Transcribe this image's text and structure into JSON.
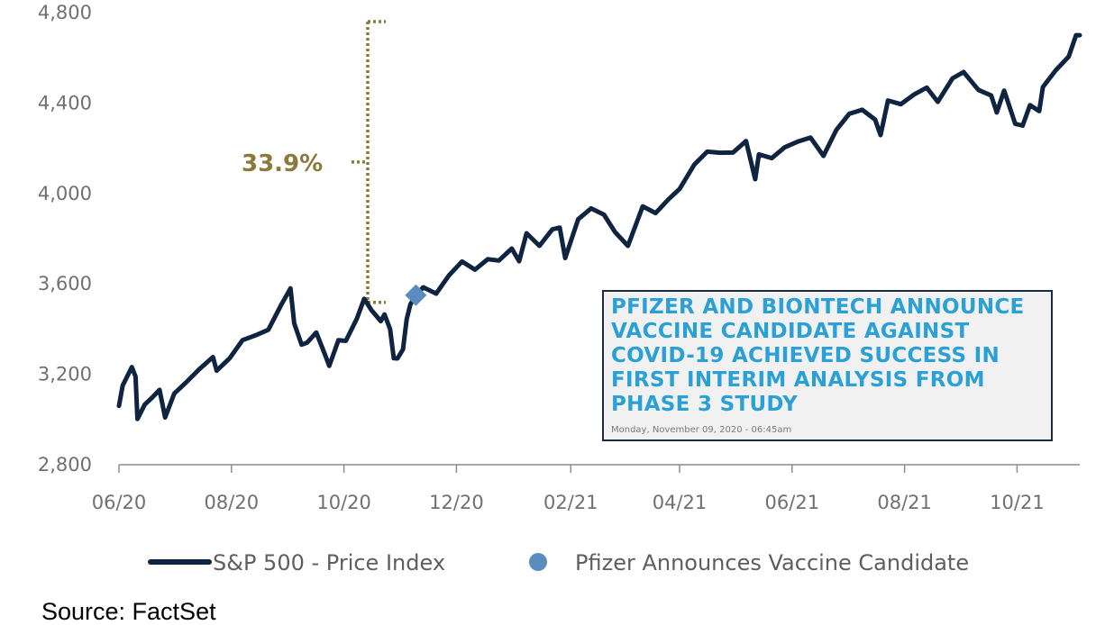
{
  "chart_data": {
    "type": "line",
    "x_axis": {
      "ticks": [
        "06/20",
        "08/20",
        "10/20",
        "12/20",
        "02/21",
        "04/21",
        "06/21",
        "08/21",
        "10/21"
      ],
      "range": [
        "2020-06-01",
        "2021-11-04"
      ]
    },
    "y_axis": {
      "ticks": [
        2800,
        3200,
        3600,
        4000,
        4400,
        4800
      ],
      "tick_labels": [
        "2,800",
        "3,200",
        "3,600",
        "4,000",
        "4,400",
        "4,800"
      ],
      "ylim": [
        2800,
        4800
      ]
    },
    "grid": false,
    "legend_placement": "bottom",
    "series": [
      {
        "name": "S&P 500 - Price Index",
        "color": "#0e2440",
        "points": [
          [
            "2020-06-01",
            3060
          ],
          [
            "2020-06-03",
            3150
          ],
          [
            "2020-06-08",
            3232
          ],
          [
            "2020-06-10",
            3190
          ],
          [
            "2020-06-11",
            3002
          ],
          [
            "2020-06-15",
            3066
          ],
          [
            "2020-06-19",
            3097
          ],
          [
            "2020-06-23",
            3131
          ],
          [
            "2020-06-26",
            3009
          ],
          [
            "2020-07-01",
            3115
          ],
          [
            "2020-07-08",
            3169
          ],
          [
            "2020-07-15",
            3226
          ],
          [
            "2020-07-22",
            3276
          ],
          [
            "2020-07-24",
            3216
          ],
          [
            "2020-07-31",
            3271
          ],
          [
            "2020-08-07",
            3351
          ],
          [
            "2020-08-14",
            3372
          ],
          [
            "2020-08-21",
            3397
          ],
          [
            "2020-08-28",
            3508
          ],
          [
            "2020-09-02",
            3580
          ],
          [
            "2020-09-04",
            3426
          ],
          [
            "2020-09-08",
            3331
          ],
          [
            "2020-09-11",
            3340
          ],
          [
            "2020-09-16",
            3385
          ],
          [
            "2020-09-21",
            3281
          ],
          [
            "2020-09-23",
            3237
          ],
          [
            "2020-09-28",
            3351
          ],
          [
            "2020-10-02",
            3348
          ],
          [
            "2020-10-08",
            3446
          ],
          [
            "2020-10-12",
            3534
          ],
          [
            "2020-10-16",
            3483
          ],
          [
            "2020-10-21",
            3435
          ],
          [
            "2020-10-23",
            3465
          ],
          [
            "2020-10-26",
            3400
          ],
          [
            "2020-10-28",
            3271
          ],
          [
            "2020-10-30",
            3270
          ],
          [
            "2020-11-02",
            3310
          ],
          [
            "2020-11-04",
            3443
          ],
          [
            "2020-11-06",
            3509
          ],
          [
            "2020-11-09",
            3550
          ],
          [
            "2020-11-13",
            3585
          ],
          [
            "2020-11-20",
            3557
          ],
          [
            "2020-11-27",
            3638
          ],
          [
            "2020-12-04",
            3699
          ],
          [
            "2020-12-11",
            3663
          ],
          [
            "2020-12-18",
            3709
          ],
          [
            "2020-12-24",
            3703
          ],
          [
            "2020-12-31",
            3756
          ],
          [
            "2021-01-04",
            3700
          ],
          [
            "2021-01-08",
            3824
          ],
          [
            "2021-01-15",
            3768
          ],
          [
            "2021-01-22",
            3841
          ],
          [
            "2021-01-26",
            3849
          ],
          [
            "2021-01-29",
            3714
          ],
          [
            "2021-02-05",
            3886
          ],
          [
            "2021-02-12",
            3934
          ],
          [
            "2021-02-19",
            3906
          ],
          [
            "2021-02-25",
            3829
          ],
          [
            "2021-03-04",
            3768
          ],
          [
            "2021-03-12",
            3943
          ],
          [
            "2021-03-19",
            3913
          ],
          [
            "2021-03-26",
            3974
          ],
          [
            "2021-04-01",
            4020
          ],
          [
            "2021-04-09",
            4128
          ],
          [
            "2021-04-16",
            4185
          ],
          [
            "2021-04-23",
            4180
          ],
          [
            "2021-04-30",
            4181
          ],
          [
            "2021-05-07",
            4232
          ],
          [
            "2021-05-12",
            4063
          ],
          [
            "2021-05-14",
            4173
          ],
          [
            "2021-05-21",
            4156
          ],
          [
            "2021-05-28",
            4204
          ],
          [
            "2021-06-04",
            4229
          ],
          [
            "2021-06-11",
            4247
          ],
          [
            "2021-06-18",
            4166
          ],
          [
            "2021-06-25",
            4281
          ],
          [
            "2021-07-02",
            4352
          ],
          [
            "2021-07-09",
            4370
          ],
          [
            "2021-07-16",
            4327
          ],
          [
            "2021-07-19",
            4258
          ],
          [
            "2021-07-23",
            4411
          ],
          [
            "2021-07-30",
            4395
          ],
          [
            "2021-08-06",
            4437
          ],
          [
            "2021-08-13",
            4468
          ],
          [
            "2021-08-19",
            4405
          ],
          [
            "2021-08-27",
            4509
          ],
          [
            "2021-09-02",
            4537
          ],
          [
            "2021-09-10",
            4458
          ],
          [
            "2021-09-17",
            4433
          ],
          [
            "2021-09-20",
            4358
          ],
          [
            "2021-09-24",
            4455
          ],
          [
            "2021-09-30",
            4308
          ],
          [
            "2021-10-04",
            4300
          ],
          [
            "2021-10-08",
            4391
          ],
          [
            "2021-10-13",
            4364
          ],
          [
            "2021-10-15",
            4471
          ],
          [
            "2021-10-22",
            4545
          ],
          [
            "2021-10-29",
            4605
          ],
          [
            "2021-11-02",
            4700
          ],
          [
            "2021-11-04",
            4700
          ]
        ]
      },
      {
        "name": "Pfizer Announces Vaccine Candidate",
        "color": "#5b8cc0",
        "marker": "diamond",
        "points": [
          [
            "2020-11-09",
            3550
          ]
        ]
      }
    ],
    "annotations": [
      {
        "text": "33.9%",
        "color": "#8b7a3a",
        "from_y": 3550,
        "to_y": 4760,
        "style": "dotted-bracket"
      }
    ]
  },
  "callout": {
    "headline": [
      "PFIZER AND BIONTECH ANNOUNCE",
      "VACCINE CANDIDATE AGAINST",
      "COVID-19 ACHIEVED SUCCESS IN",
      "FIRST INTERIM ANALYSIS FROM",
      "PHASE 3 STUDY"
    ],
    "date": "Monday, November 09, 2020 - 06:45am"
  },
  "source": "Source: FactSet"
}
